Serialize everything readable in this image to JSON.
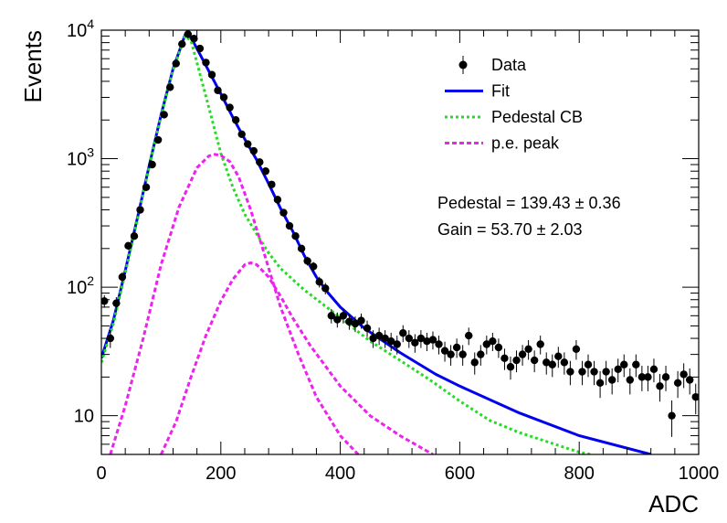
{
  "chart_data": {
    "type": "scatter",
    "title": "",
    "xlabel": "ADC",
    "ylabel": "Events",
    "xlim": [
      0,
      1000
    ],
    "ylim": [
      5,
      10000
    ],
    "yscale": "log",
    "grid": false,
    "legend_position": "top-right",
    "x_ticks": [
      "0",
      "200",
      "400",
      "600",
      "800",
      "1000"
    ],
    "y_ticks": [
      {
        "base": "10",
        "exp": ""
      },
      {
        "base": "10",
        "exp": "2"
      },
      {
        "base": "10",
        "exp": "3"
      },
      {
        "base": "10",
        "exp": "4"
      }
    ],
    "legend": [
      {
        "label": "Data",
        "style": "marker",
        "color": "#000000"
      },
      {
        "label": "Fit",
        "style": "solid",
        "color": "#0000ee"
      },
      {
        "label": "Pedestal CB",
        "style": "dotted",
        "color": "#22dd22"
      },
      {
        "label": "p.e. peak",
        "style": "dashed",
        "color": "#ee22ee"
      }
    ],
    "annotations": [
      {
        "label": "Pedestal = 139.43",
        "pm": "±",
        "value": "0.36"
      },
      {
        "label": "Gain = 53.70",
        "pm": "±",
        "value": "2.03"
      }
    ],
    "series": [
      {
        "name": "Data",
        "kind": "points",
        "color": "#000000",
        "points": [
          [
            5,
            78
          ],
          [
            15,
            40
          ],
          [
            25,
            75
          ],
          [
            35,
            120
          ],
          [
            45,
            210
          ],
          [
            55,
            250
          ],
          [
            65,
            400
          ],
          [
            75,
            600
          ],
          [
            85,
            900
          ],
          [
            95,
            1400
          ],
          [
            105,
            2200
          ],
          [
            115,
            3600
          ],
          [
            125,
            5500
          ],
          [
            135,
            7800
          ],
          [
            145,
            9300
          ],
          [
            155,
            8600
          ],
          [
            165,
            7200
          ],
          [
            175,
            5600
          ],
          [
            185,
            4500
          ],
          [
            195,
            3400
          ],
          [
            205,
            3000
          ],
          [
            215,
            2500
          ],
          [
            225,
            2000
          ],
          [
            235,
            1550
          ],
          [
            245,
            1300
          ],
          [
            255,
            1150
          ],
          [
            265,
            940
          ],
          [
            275,
            800
          ],
          [
            285,
            630
          ],
          [
            295,
            480
          ],
          [
            305,
            380
          ],
          [
            315,
            300
          ],
          [
            325,
            250
          ],
          [
            335,
            200
          ],
          [
            345,
            160
          ],
          [
            355,
            145
          ],
          [
            365,
            110
          ],
          [
            375,
            98
          ],
          [
            385,
            60
          ],
          [
            395,
            56
          ],
          [
            405,
            60
          ],
          [
            415,
            54
          ],
          [
            425,
            52
          ],
          [
            435,
            55
          ],
          [
            445,
            48
          ],
          [
            455,
            40
          ],
          [
            465,
            42
          ],
          [
            475,
            40
          ],
          [
            485,
            38
          ],
          [
            495,
            36
          ],
          [
            505,
            44
          ],
          [
            515,
            40
          ],
          [
            525,
            37
          ],
          [
            535,
            40
          ],
          [
            545,
            38
          ],
          [
            555,
            39
          ],
          [
            565,
            36
          ],
          [
            575,
            32
          ],
          [
            585,
            30
          ],
          [
            595,
            34
          ],
          [
            605,
            30
          ],
          [
            615,
            42
          ],
          [
            625,
            26
          ],
          [
            635,
            30
          ],
          [
            645,
            36
          ],
          [
            655,
            38
          ],
          [
            665,
            34
          ],
          [
            675,
            28
          ],
          [
            685,
            24
          ],
          [
            695,
            27
          ],
          [
            705,
            30
          ],
          [
            715,
            33
          ],
          [
            725,
            27
          ],
          [
            735,
            36
          ],
          [
            745,
            26
          ],
          [
            755,
            25
          ],
          [
            765,
            29
          ],
          [
            775,
            26
          ],
          [
            785,
            22
          ],
          [
            795,
            33
          ],
          [
            805,
            22
          ],
          [
            815,
            25
          ],
          [
            825,
            22
          ],
          [
            835,
            18
          ],
          [
            845,
            22
          ],
          [
            855,
            19
          ],
          [
            865,
            23
          ],
          [
            875,
            25
          ],
          [
            885,
            19
          ],
          [
            895,
            25
          ],
          [
            905,
            20
          ],
          [
            915,
            20
          ],
          [
            925,
            23
          ],
          [
            935,
            17
          ],
          [
            945,
            20
          ],
          [
            955,
            10
          ],
          [
            965,
            18
          ],
          [
            975,
            21
          ],
          [
            985,
            19
          ],
          [
            995,
            14
          ]
        ]
      },
      {
        "name": "Fit",
        "kind": "line",
        "color": "#0000ee",
        "points": [
          [
            0,
            28
          ],
          [
            20,
            55
          ],
          [
            40,
            135
          ],
          [
            60,
            340
          ],
          [
            80,
            880
          ],
          [
            100,
            2200
          ],
          [
            120,
            5000
          ],
          [
            140,
            9200
          ],
          [
            150,
            8800
          ],
          [
            160,
            7200
          ],
          [
            180,
            4800
          ],
          [
            200,
            3200
          ],
          [
            220,
            2100
          ],
          [
            240,
            1420
          ],
          [
            260,
            980
          ],
          [
            280,
            640
          ],
          [
            300,
            410
          ],
          [
            320,
            275
          ],
          [
            340,
            175
          ],
          [
            360,
            120
          ],
          [
            380,
            90
          ],
          [
            400,
            70
          ],
          [
            440,
            48
          ],
          [
            500,
            31
          ],
          [
            560,
            21
          ],
          [
            600,
            17
          ],
          [
            700,
            10.5
          ],
          [
            800,
            7
          ],
          [
            920,
            5
          ]
        ]
      },
      {
        "name": "Pedestal CB",
        "kind": "line",
        "color": "#22dd22",
        "points": [
          [
            0,
            26
          ],
          [
            20,
            52
          ],
          [
            40,
            130
          ],
          [
            60,
            330
          ],
          [
            80,
            860
          ],
          [
            100,
            2150
          ],
          [
            120,
            4900
          ],
          [
            140,
            9000
          ],
          [
            150,
            8300
          ],
          [
            160,
            5600
          ],
          [
            180,
            2500
          ],
          [
            200,
            1100
          ],
          [
            220,
            600
          ],
          [
            240,
            370
          ],
          [
            260,
            260
          ],
          [
            280,
            185
          ],
          [
            300,
            140
          ],
          [
            340,
            95
          ],
          [
            400,
            58
          ],
          [
            450,
            38
          ],
          [
            500,
            27
          ],
          [
            550,
            19
          ],
          [
            600,
            13
          ],
          [
            650,
            9.2
          ],
          [
            700,
            7.4
          ],
          [
            750,
            6.2
          ],
          [
            800,
            5.2
          ],
          [
            820,
            5
          ]
        ]
      },
      {
        "name": "p.e. peak 1",
        "kind": "line",
        "color": "#ee22ee",
        "points": [
          [
            15,
            5
          ],
          [
            40,
            12
          ],
          [
            70,
            40
          ],
          [
            100,
            150
          ],
          [
            130,
            420
          ],
          [
            160,
            850
          ],
          [
            180,
            1050
          ],
          [
            190,
            1080
          ],
          [
            200,
            1060
          ],
          [
            215,
            950
          ],
          [
            230,
            720
          ],
          [
            250,
            400
          ],
          [
            270,
            200
          ],
          [
            300,
            70
          ],
          [
            330,
            30
          ],
          [
            360,
            14
          ],
          [
            400,
            7
          ],
          [
            430,
            5
          ]
        ]
      },
      {
        "name": "p.e. peak 2",
        "kind": "line",
        "color": "#ee22ee",
        "points": [
          [
            100,
            5
          ],
          [
            125,
            9
          ],
          [
            150,
            20
          ],
          [
            175,
            42
          ],
          [
            200,
            78
          ],
          [
            220,
            115
          ],
          [
            240,
            150
          ],
          [
            250,
            155
          ],
          [
            260,
            150
          ],
          [
            280,
            120
          ],
          [
            300,
            85
          ],
          [
            320,
            58
          ],
          [
            350,
            35
          ],
          [
            400,
            17
          ],
          [
            450,
            10
          ],
          [
            500,
            7
          ],
          [
            555,
            5
          ]
        ]
      }
    ]
  }
}
